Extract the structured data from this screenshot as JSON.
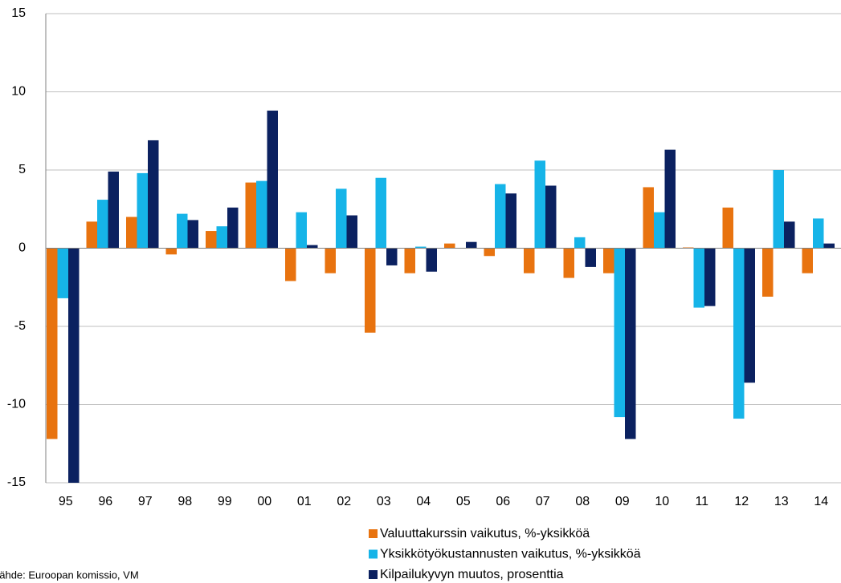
{
  "chart_data": {
    "type": "bar",
    "source": "Lähde: Euroopan komissio, VM",
    "categories": [
      "95",
      "96",
      "97",
      "98",
      "99",
      "00",
      "01",
      "02",
      "03",
      "04",
      "05",
      "06",
      "07",
      "08",
      "09",
      "10",
      "11",
      "12",
      "13",
      "14"
    ],
    "series": [
      {
        "name": "Valuuttakurssin vaikutus, %-yksikköä",
        "color": "#e8730f",
        "values": [
          -12.2,
          1.7,
          2.0,
          -0.4,
          1.1,
          4.2,
          -2.1,
          -1.6,
          -5.4,
          -1.6,
          0.3,
          -0.5,
          -1.6,
          -1.9,
          -1.6,
          3.9,
          0.05,
          2.6,
          -3.1,
          -1.6
        ]
      },
      {
        "name": "Yksikkötyökustannusten vaikutus, %-yksikköä",
        "color": "#16b4e8",
        "values": [
          -3.2,
          3.1,
          4.8,
          2.2,
          1.4,
          4.3,
          2.3,
          3.8,
          4.5,
          0.1,
          0,
          4.1,
          5.6,
          0.7,
          -10.8,
          2.3,
          -3.8,
          -10.9,
          5.0,
          1.9
        ]
      },
      {
        "name": "Kilpailukyvyn muutos, prosenttia",
        "color": "#0b2160",
        "values": [
          -15,
          4.9,
          6.9,
          1.8,
          2.6,
          8.8,
          0.2,
          2.1,
          -1.1,
          -1.5,
          0.4,
          3.5,
          4.0,
          -1.2,
          -12.2,
          6.3,
          -3.7,
          -8.6,
          1.7,
          0.3
        ]
      }
    ],
    "ylim": [
      -15,
      15
    ],
    "yticks": [
      -15,
      -10,
      -5,
      0,
      5,
      10,
      15
    ],
    "grid": true
  }
}
